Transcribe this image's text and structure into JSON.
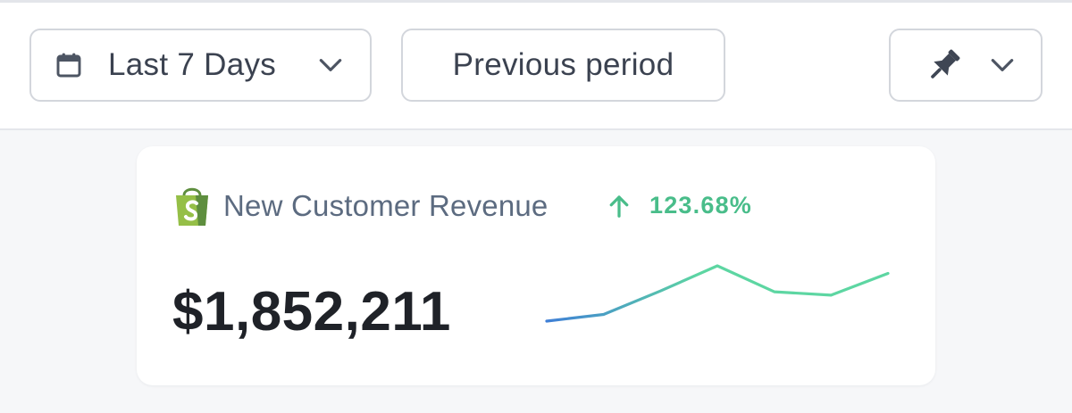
{
  "toolbar": {
    "date_range": {
      "label": "Last 7 Days",
      "icon": "calendar-icon"
    },
    "compare": {
      "label": "Previous period"
    },
    "pin": {
      "icon": "pin-icon"
    }
  },
  "metric_card": {
    "source_icon": "shopify-bag-icon",
    "title": "New Customer Revenue",
    "change": "123.68%",
    "change_direction": "up",
    "value": "$1,852,211",
    "colors": {
      "positive": "#49bd8a",
      "spark_start": "#3f7fd6",
      "spark_end": "#5dd6a2",
      "shopify_green": "#95bf47"
    },
    "sparkline": [
      6,
      14,
      42,
      72,
      41,
      37,
      63
    ]
  }
}
